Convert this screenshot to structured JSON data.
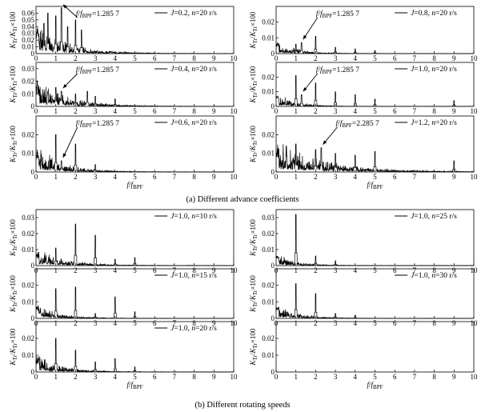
{
  "figure": {
    "caption_a": "(a) Different advance coefficients",
    "caption_b": "(b) Different rotating speeds"
  },
  "chart_data": [
    {
      "id": "a1",
      "type": "line",
      "legend": "J=0.2, n=20 r/s",
      "annotation": "f/f_BPF=1.285 7",
      "ann_x": 1.2857,
      "ylabel": "K_Tr/K_Tr x100",
      "xlabel": "f/f_BPF",
      "xlim": [
        0,
        10
      ],
      "ylim": [
        0,
        0.07
      ],
      "yticks": [
        0,
        0.01,
        0.02,
        0.03,
        0.04,
        0.05,
        0.06
      ],
      "peaks": [
        [
          1.0,
          0.056
        ],
        [
          1.2857,
          0.068
        ],
        [
          2.0,
          0.05
        ],
        [
          0.6,
          0.06
        ],
        [
          0.4,
          0.045
        ],
        [
          1.6,
          0.04
        ],
        [
          2.3,
          0.035
        ]
      ],
      "noise_start": 0.03,
      "noise_decay": 0.55
    },
    {
      "id": "a2",
      "type": "line",
      "legend": "J=0.8, n=20 r/s",
      "annotation": "f/f_BPF=1.285 7",
      "ann_x": 1.2857,
      "ylabel": "K_Tr/K_Tr x100",
      "xlabel": "f/f_BPF",
      "xlim": [
        0,
        10
      ],
      "ylim": [
        0,
        0.03
      ],
      "yticks": [
        0,
        0.01,
        0.02
      ],
      "peaks": [
        [
          1.0,
          0.006
        ],
        [
          1.2857,
          0.007
        ],
        [
          2.0,
          0.011
        ],
        [
          3.0,
          0.004
        ],
        [
          4.0,
          0.003
        ],
        [
          5.0,
          0.002
        ]
      ],
      "noise_start": 0.006,
      "noise_decay": 0.9
    },
    {
      "id": "a3",
      "type": "line",
      "legend": "J=0.4, n=20 r/s",
      "annotation": "f/f_BPF=1.285 7",
      "ann_x": 1.2857,
      "ylabel": "K_Tr/K_Tr x100",
      "xlabel": "f/f_BPF",
      "xlim": [
        0,
        10
      ],
      "ylim": [
        0,
        0.035
      ],
      "yticks": [
        0,
        0.01,
        0.02,
        0.03
      ],
      "peaks": [
        [
          1.0,
          0.015
        ],
        [
          1.2857,
          0.012
        ],
        [
          2.0,
          0.01
        ],
        [
          2.6,
          0.012
        ],
        [
          3.0,
          0.008
        ],
        [
          4.0,
          0.006
        ]
      ],
      "noise_start": 0.015,
      "noise_decay": 0.55
    },
    {
      "id": "a4",
      "type": "line",
      "legend": "J=1.0, n=20 r/s",
      "annotation": "f/f_BPF=1.285 7",
      "ann_x": 1.2857,
      "ylabel": "K_Tr/K_Tr x100",
      "xlabel": "f/f_BPF",
      "xlim": [
        0,
        10
      ],
      "ylim": [
        0,
        0.03
      ],
      "yticks": [
        0,
        0.01,
        0.02
      ],
      "peaks": [
        [
          1.0,
          0.021
        ],
        [
          1.2857,
          0.008
        ],
        [
          2.0,
          0.016
        ],
        [
          3.0,
          0.01
        ],
        [
          4.0,
          0.008
        ],
        [
          5.0,
          0.005
        ],
        [
          9.0,
          0.004
        ]
      ],
      "noise_start": 0.006,
      "noise_decay": 0.9
    },
    {
      "id": "a5",
      "type": "line",
      "legend": "J=0.6, n=20 r/s",
      "annotation": "f/f_BPF=1.285 7",
      "ann_x": 1.2857,
      "ylabel": "K_Tr/K_Tr x100",
      "xlabel": "f/f_BPF",
      "xlim": [
        0,
        10
      ],
      "ylim": [
        0,
        0.03
      ],
      "yticks": [
        0,
        0.01,
        0.02
      ],
      "peaks": [
        [
          1.0,
          0.02
        ],
        [
          1.2857,
          0.006
        ],
        [
          2.0,
          0.015
        ],
        [
          3.0,
          0.004
        ]
      ],
      "noise_start": 0.009,
      "noise_decay": 0.65
    },
    {
      "id": "a6",
      "type": "line",
      "legend": "J=1.2, n=20 r/s",
      "annotation": "f/f_BPF=2.285 7",
      "ann_x": 2.2857,
      "ylabel": "K_Tr/K_Tr x100",
      "xlabel": "f/f_BPF",
      "xlim": [
        0,
        10
      ],
      "ylim": [
        0,
        0.03
      ],
      "yticks": [
        0,
        0.01,
        0.02
      ],
      "peaks": [
        [
          1.0,
          0.015
        ],
        [
          2.0,
          0.012
        ],
        [
          2.2857,
          0.013
        ],
        [
          3.0,
          0.01
        ],
        [
          4.0,
          0.009
        ],
        [
          5.0,
          0.011
        ],
        [
          9.0,
          0.006
        ]
      ],
      "noise_start": 0.011,
      "noise_decay": 0.35
    },
    {
      "id": "b1",
      "type": "line",
      "legend": "J=1.0, n=10 r/s",
      "ylabel": "K_Tr/K_Tr x100",
      "xlabel": "f/f_BPF",
      "xlim": [
        0,
        10
      ],
      "ylim": [
        0,
        0.035
      ],
      "yticks": [
        0,
        0.01,
        0.02,
        0.03
      ],
      "peaks": [
        [
          1.0,
          0.011
        ],
        [
          2.0,
          0.026
        ],
        [
          3.0,
          0.019
        ],
        [
          4.0,
          0.004
        ],
        [
          5.0,
          0.005
        ]
      ],
      "noise_start": 0.007,
      "noise_decay": 0.6
    },
    {
      "id": "b2",
      "type": "line",
      "legend": "J=1.0, n=25 r/s",
      "ylabel": "K_Tr/K_Tr x100",
      "xlabel": "f/f_BPF",
      "xlim": [
        0,
        10
      ],
      "ylim": [
        0,
        0.035
      ],
      "yticks": [
        0,
        0.01,
        0.02,
        0.03
      ],
      "peaks": [
        [
          1.0,
          0.032
        ],
        [
          2.0,
          0.006
        ],
        [
          3.0,
          0.003
        ]
      ],
      "noise_start": 0.005,
      "noise_decay": 0.9
    },
    {
      "id": "b3",
      "type": "line",
      "legend": "J=1.0, n=15 r/s",
      "ylabel": "K_Tr/K_Tr x100",
      "xlabel": "f/f_BPF",
      "xlim": [
        0,
        10
      ],
      "ylim": [
        0,
        0.03
      ],
      "yticks": [
        0,
        0.01,
        0.02
      ],
      "peaks": [
        [
          1.0,
          0.018
        ],
        [
          2.0,
          0.019
        ],
        [
          3.0,
          0.003
        ],
        [
          4.0,
          0.013
        ],
        [
          5.0,
          0.004
        ]
      ],
      "noise_start": 0.006,
      "noise_decay": 0.8
    },
    {
      "id": "b4",
      "type": "line",
      "legend": "J=1.0, n=30 r/s",
      "ylabel": "K_Tr/K_Tr x100",
      "xlabel": "f/f_BPF",
      "xlim": [
        0,
        10
      ],
      "ylim": [
        0,
        0.03
      ],
      "yticks": [
        0,
        0.01,
        0.02
      ],
      "peaks": [
        [
          1.0,
          0.021
        ],
        [
          2.0,
          0.015
        ],
        [
          3.0,
          0.003
        ],
        [
          4.0,
          0.002
        ]
      ],
      "noise_start": 0.006,
      "noise_decay": 0.8
    },
    {
      "id": "b5",
      "type": "line",
      "legend": "J=1.0, n=20 r/s",
      "ylabel": "K_Tr/K_Tr x100",
      "xlabel": "f/f_BPF",
      "xlim": [
        0,
        10
      ],
      "ylim": [
        0,
        0.03
      ],
      "yticks": [
        0,
        0.01,
        0.02
      ],
      "peaks": [
        [
          1.0,
          0.02
        ],
        [
          2.0,
          0.013
        ],
        [
          3.0,
          0.006
        ],
        [
          4.0,
          0.008
        ],
        [
          5.0,
          0.003
        ]
      ],
      "noise_start": 0.007,
      "noise_decay": 0.7
    },
    {
      "id": "b6",
      "type": "line",
      "legend": "",
      "ylabel": "K_Tr/K_Tr x100",
      "xlabel": "f/f_BPF",
      "xlim": [
        0,
        10
      ],
      "ylim": [
        0,
        0.03
      ],
      "yticks": [
        0,
        0.01,
        0.02
      ],
      "peaks": [],
      "noise_start": 0,
      "noise_decay": 1,
      "empty": true
    }
  ]
}
